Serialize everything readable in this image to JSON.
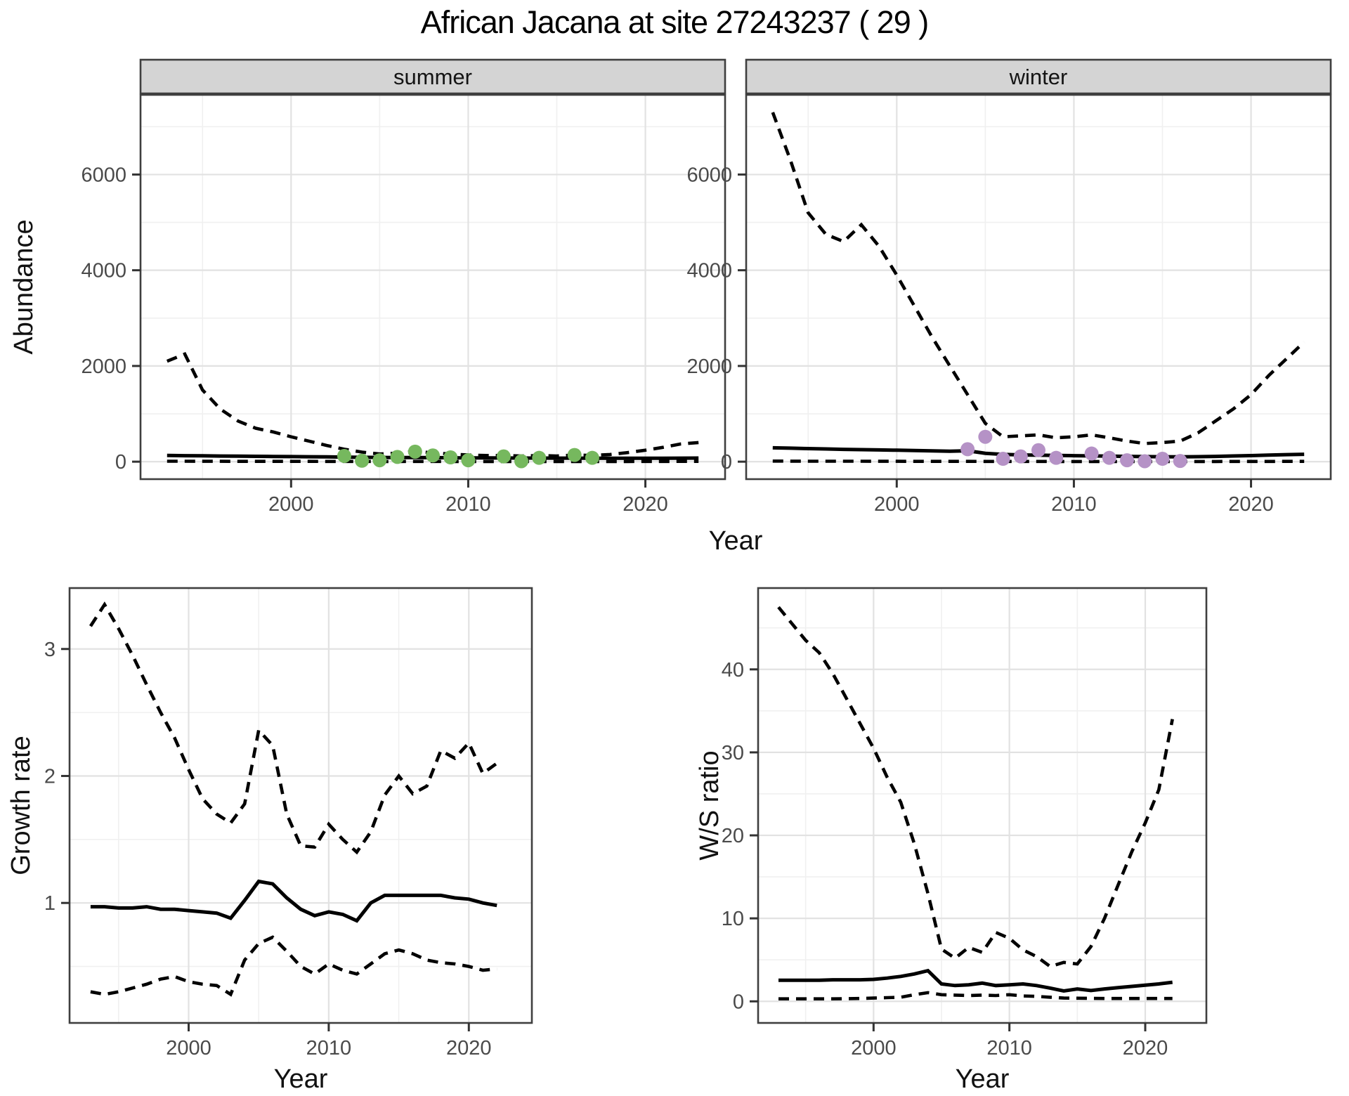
{
  "chart_data": {
    "type": "line",
    "title": "African Jacana at site 27243237 ( 29 )",
    "colors": {
      "line": "#000000",
      "summer_points": "#76b85e",
      "winter_points": "#b592c6",
      "strip_bg": "#d4d4d4",
      "panel_border": "#3f3f3f",
      "grid_major": "#e2e2e2",
      "grid_minor": "#f0f0f0",
      "tick_text": "#4a4a4a",
      "axis_title_text": "#111111"
    },
    "top_row": {
      "shared_ylabel": "Abundance",
      "shared_xlabel": "Year",
      "xlim": [
        1991.5,
        2024.5
      ],
      "x_ticks": [
        2000,
        2010,
        2020
      ],
      "x_minor": [
        1995,
        2005,
        2015
      ],
      "ylim": [
        -365,
        7665
      ],
      "y_ticks": [
        0,
        2000,
        4000,
        6000
      ],
      "y_minor": [
        1000,
        3000,
        5000,
        7000
      ],
      "years": [
        1993,
        1994,
        1995,
        1996,
        1997,
        1998,
        1999,
        2000,
        2001,
        2002,
        2003,
        2004,
        2005,
        2006,
        2007,
        2008,
        2009,
        2010,
        2011,
        2012,
        2013,
        2014,
        2015,
        2016,
        2017,
        2018,
        2019,
        2020,
        2021,
        2022,
        2023
      ],
      "facets": [
        {
          "label": "summer",
          "upper_ci": [
            2100,
            2250,
            1500,
            1100,
            850,
            700,
            620,
            520,
            430,
            340,
            260,
            200,
            160,
            180,
            215,
            185,
            160,
            140,
            130,
            130,
            120,
            130,
            120,
            140,
            130,
            150,
            190,
            240,
            300,
            370,
            400
          ],
          "median": [
            130,
            126,
            122,
            118,
            115,
            112,
            109,
            106,
            103,
            100,
            96,
            92,
            88,
            86,
            85,
            84,
            82,
            80,
            78,
            77,
            76,
            75,
            74,
            74,
            73,
            72,
            72,
            72,
            73,
            74,
            75
          ],
          "lower_ci": [
            10,
            9,
            8,
            8,
            7,
            7,
            6,
            6,
            6,
            5,
            5,
            5,
            4,
            4,
            5,
            5,
            4,
            4,
            4,
            4,
            4,
            4,
            4,
            4,
            4,
            4,
            4,
            5,
            5,
            6,
            6
          ],
          "points": {
            "color": "#76b85e",
            "years": [
              2003,
              2004,
              2005,
              2006,
              2007,
              2008,
              2009,
              2010,
              2012,
              2013,
              2014,
              2016,
              2017
            ],
            "values": [
              120,
              20,
              30,
              100,
              210,
              130,
              90,
              30,
              110,
              10,
              80,
              140,
              80
            ]
          }
        },
        {
          "label": "winter",
          "upper_ci": [
            7300,
            6300,
            5200,
            4750,
            4600,
            4950,
            4500,
            3900,
            3250,
            2600,
            2000,
            1400,
            800,
            520,
            540,
            560,
            500,
            520,
            560,
            500,
            430,
            380,
            400,
            430,
            600,
            850,
            1100,
            1400,
            1800,
            2150,
            2500
          ],
          "median": [
            290,
            282,
            274,
            266,
            258,
            252,
            246,
            240,
            232,
            225,
            218,
            228,
            175,
            152,
            142,
            136,
            130,
            126,
            121,
            116,
            111,
            106,
            103,
            101,
            105,
            111,
            119,
            127,
            137,
            147,
            155
          ],
          "lower_ci": [
            12,
            11,
            10,
            10,
            9,
            9,
            8,
            8,
            7,
            7,
            6,
            6,
            5,
            5,
            5,
            5,
            4,
            4,
            4,
            4,
            4,
            4,
            4,
            4,
            4,
            4,
            5,
            5,
            5,
            6,
            6
          ],
          "points": {
            "color": "#b592c6",
            "years": [
              2004,
              2005,
              2006,
              2007,
              2008,
              2009,
              2011,
              2012,
              2013,
              2014,
              2015,
              2016
            ],
            "values": [
              260,
              520,
              60,
              110,
              240,
              80,
              170,
              80,
              30,
              10,
              60,
              15
            ]
          }
        }
      ]
    },
    "bottom_row": [
      {
        "ylabel": "Growth rate",
        "xlabel": "Year",
        "xlim": [
          1991.5,
          2024.5
        ],
        "x_ticks": [
          2000,
          2010,
          2020
        ],
        "x_minor": [
          1995,
          2005,
          2015
        ],
        "ylim": [
          0.055,
          3.48
        ],
        "y_ticks": [
          1,
          2,
          3
        ],
        "y_minor": [
          0.5,
          1.5,
          2.5
        ],
        "years": [
          1993,
          1994,
          1995,
          1996,
          1997,
          1998,
          1999,
          2000,
          2001,
          2002,
          2003,
          2004,
          2005,
          2006,
          2007,
          2008,
          2009,
          2010,
          2011,
          2012,
          2013,
          2014,
          2015,
          2016,
          2017,
          2018,
          2019,
          2020,
          2021,
          2022
        ],
        "upper_ci": [
          3.18,
          3.35,
          3.16,
          2.95,
          2.72,
          2.5,
          2.3,
          2.05,
          1.82,
          1.7,
          1.63,
          1.78,
          2.36,
          2.24,
          1.7,
          1.45,
          1.44,
          1.62,
          1.5,
          1.4,
          1.56,
          1.85,
          2.0,
          1.86,
          1.92,
          2.2,
          2.14,
          2.26,
          2.02,
          2.1
        ],
        "median": [
          0.97,
          0.97,
          0.96,
          0.96,
          0.97,
          0.95,
          0.95,
          0.94,
          0.93,
          0.92,
          0.88,
          1.02,
          1.17,
          1.15,
          1.04,
          0.95,
          0.9,
          0.93,
          0.91,
          0.86,
          1.0,
          1.06,
          1.06,
          1.06,
          1.06,
          1.06,
          1.04,
          1.03,
          1.0,
          0.98
        ],
        "lower_ci": [
          0.3,
          0.28,
          0.3,
          0.33,
          0.36,
          0.4,
          0.42,
          0.38,
          0.36,
          0.35,
          0.28,
          0.55,
          0.68,
          0.73,
          0.62,
          0.5,
          0.44,
          0.52,
          0.47,
          0.44,
          0.52,
          0.6,
          0.63,
          0.6,
          0.55,
          0.53,
          0.52,
          0.5,
          0.47,
          0.48
        ]
      },
      {
        "ylabel": "W/S ratio",
        "xlabel": "Year",
        "xlim": [
          1991.5,
          2024.5
        ],
        "x_ticks": [
          2000,
          2010,
          2020
        ],
        "x_minor": [
          1995,
          2005,
          2015
        ],
        "ylim": [
          -2.6,
          49.8
        ],
        "y_ticks": [
          0,
          10,
          20,
          30,
          40
        ],
        "y_minor": [
          5,
          15,
          25,
          35,
          45
        ],
        "years": [
          1993,
          1994,
          1995,
          1996,
          1997,
          1998,
          1999,
          2000,
          2001,
          2002,
          2003,
          2004,
          2005,
          2006,
          2007,
          2008,
          2009,
          2010,
          2011,
          2012,
          2013,
          2014,
          2015,
          2016,
          2017,
          2018,
          2019,
          2020,
          2021,
          2022
        ],
        "upper_ci": [
          47.5,
          45.5,
          43.5,
          42.0,
          39.5,
          36.5,
          33.5,
          30.5,
          27.0,
          24.0,
          19.0,
          13.0,
          6.3,
          5.2,
          6.5,
          5.9,
          8.3,
          7.6,
          6.2,
          5.4,
          4.2,
          4.7,
          4.5,
          6.6,
          10.0,
          14.0,
          18.0,
          21.5,
          25.5,
          34.0
        ],
        "median": [
          2.55,
          2.55,
          2.55,
          2.55,
          2.6,
          2.6,
          2.6,
          2.65,
          2.8,
          3.0,
          3.3,
          3.7,
          2.1,
          1.9,
          2.0,
          2.2,
          1.9,
          2.0,
          2.1,
          1.9,
          1.6,
          1.25,
          1.5,
          1.3,
          1.5,
          1.65,
          1.8,
          1.95,
          2.1,
          2.3
        ],
        "lower_ci": [
          0.3,
          0.3,
          0.3,
          0.3,
          0.3,
          0.32,
          0.35,
          0.4,
          0.45,
          0.5,
          0.8,
          1.05,
          0.8,
          0.75,
          0.7,
          0.75,
          0.7,
          0.8,
          0.65,
          0.6,
          0.5,
          0.4,
          0.38,
          0.36,
          0.35,
          0.35,
          0.35,
          0.35,
          0.35,
          0.35
        ]
      }
    ]
  }
}
